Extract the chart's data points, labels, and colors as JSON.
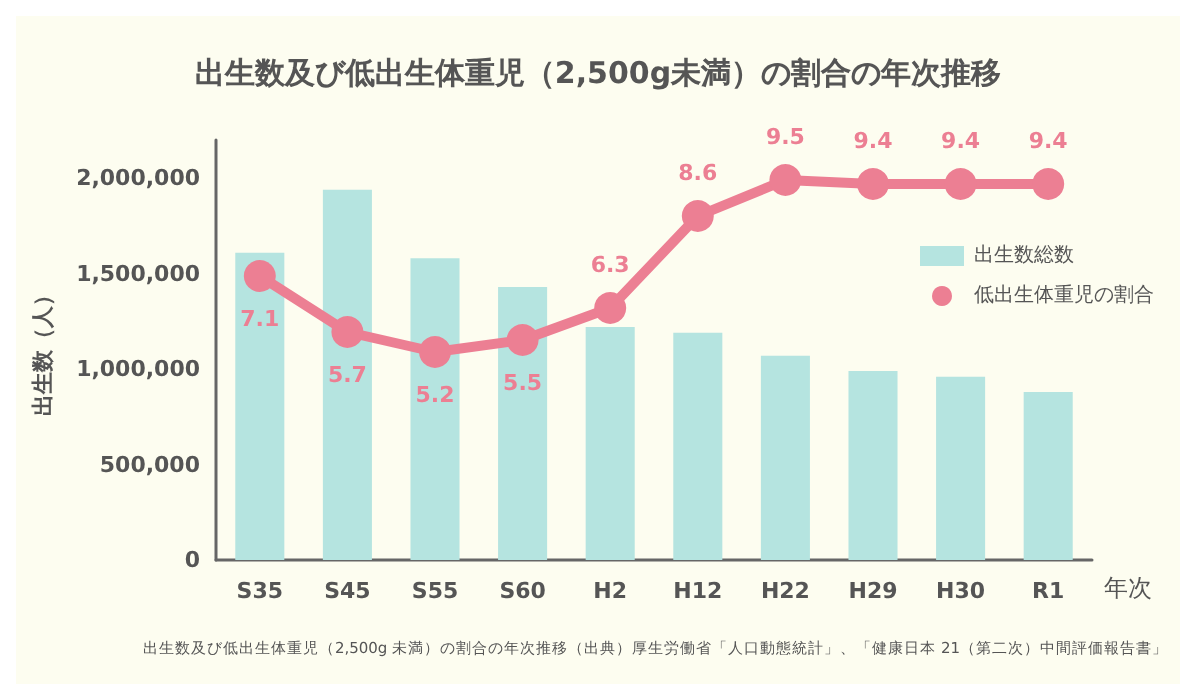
{
  "chart_data": {
    "type": "bar",
    "title": "出生数及び低出生体重児（2,500g未満）の割合の年次推移",
    "ylabel": "出生数（人）",
    "xlabel": "年次",
    "categories": [
      "S35",
      "S45",
      "S55",
      "S60",
      "H2",
      "H12",
      "H22",
      "H29",
      "H30",
      "R1"
    ],
    "series": [
      {
        "name": "出生数総数",
        "color": "#b5e4e0",
        "values": [
          1610000,
          1940000,
          1580000,
          1430000,
          1220000,
          1190000,
          1070000,
          990000,
          960000,
          880000
        ]
      },
      {
        "name": "低出生体重児の割合",
        "type": "line",
        "axis": "y2",
        "color": "#ec7f93",
        "values": [
          7.1,
          5.7,
          5.2,
          5.5,
          6.3,
          8.6,
          9.5,
          9.4,
          9.4,
          9.4
        ],
        "value_labels": [
          "7.1",
          "5.7",
          "5.2",
          "5.5",
          "6.3",
          "8.6",
          "9.5",
          "9.4",
          "9.4",
          "9.4"
        ]
      }
    ],
    "ylim": [
      0,
      2200000
    ],
    "yticks": [
      0,
      {
        "value": 500000,
        "label": "500,000"
      },
      {
        "value": 1000000,
        "label": "1,000,000"
      },
      {
        "value": 1500000,
        "label": "1,500,000"
      },
      {
        "value": 2000000,
        "label": "2,000,000"
      }
    ],
    "y2lim": [
      0,
      10.5
    ],
    "marker": "circle",
    "line_style": "solid",
    "grid": false,
    "legend": "top right",
    "annotations": [
      "出生数及び低出生体重児（2,500g 未満）の割合の年次推移（出典）厚生労働省「人口動態統計」、「健康日本 21（第二次）中間評価報告書」"
    ]
  }
}
